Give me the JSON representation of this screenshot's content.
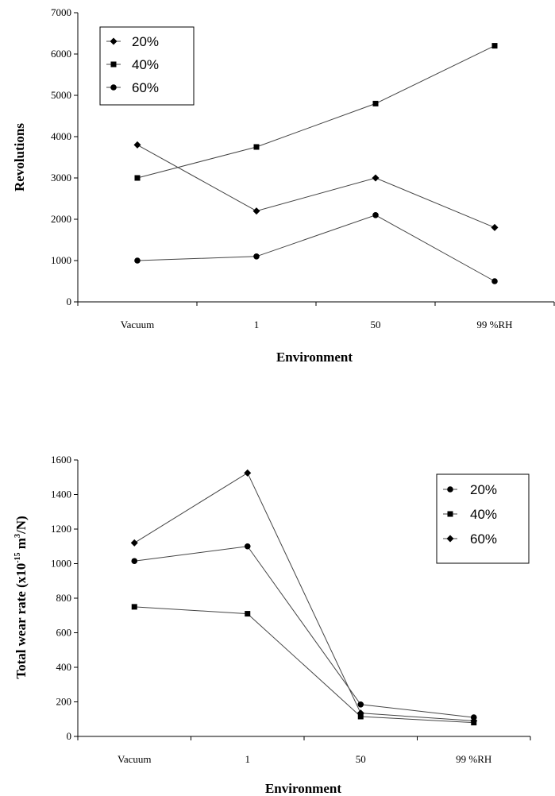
{
  "chart_data": [
    {
      "type": "line",
      "categories": [
        "Vacuum",
        "1",
        "50",
        "99 %RH"
      ],
      "xlabel": "Environment",
      "ylabel": "Revolutions",
      "ylim": [
        0,
        7000
      ],
      "yticks": [
        0,
        1000,
        2000,
        3000,
        4000,
        5000,
        6000,
        7000
      ],
      "legend_position": "top-left",
      "grid": false,
      "series": [
        {
          "name": "20%",
          "marker": "diamond",
          "values": [
            3800,
            2200,
            3000,
            1800
          ]
        },
        {
          "name": "40%",
          "marker": "square",
          "values": [
            3000,
            3750,
            4800,
            6200
          ]
        },
        {
          "name": "60%",
          "marker": "circle",
          "values": [
            1000,
            1100,
            2100,
            500
          ]
        }
      ]
    },
    {
      "type": "line",
      "categories": [
        "Vacuum",
        "1",
        "50",
        "99 %RH"
      ],
      "xlabel": "Environment",
      "ylabel": "Total wear rate (x10",
      "ylabel_sup1": "-15",
      "ylabel_mid": " m",
      "ylabel_sup2": "3",
      "ylabel_end": "/N)",
      "ylim": [
        0,
        1600
      ],
      "yticks": [
        0,
        200,
        400,
        600,
        800,
        1000,
        1200,
        1400,
        1600
      ],
      "legend_position": "top-right",
      "grid": false,
      "series": [
        {
          "name": "20%",
          "marker": "circle",
          "values": [
            1015,
            1100,
            185,
            110
          ]
        },
        {
          "name": "40%",
          "marker": "square",
          "values": [
            750,
            710,
            115,
            80
          ]
        },
        {
          "name": "60%",
          "marker": "diamond",
          "values": [
            1120,
            1525,
            135,
            90
          ]
        }
      ]
    }
  ]
}
